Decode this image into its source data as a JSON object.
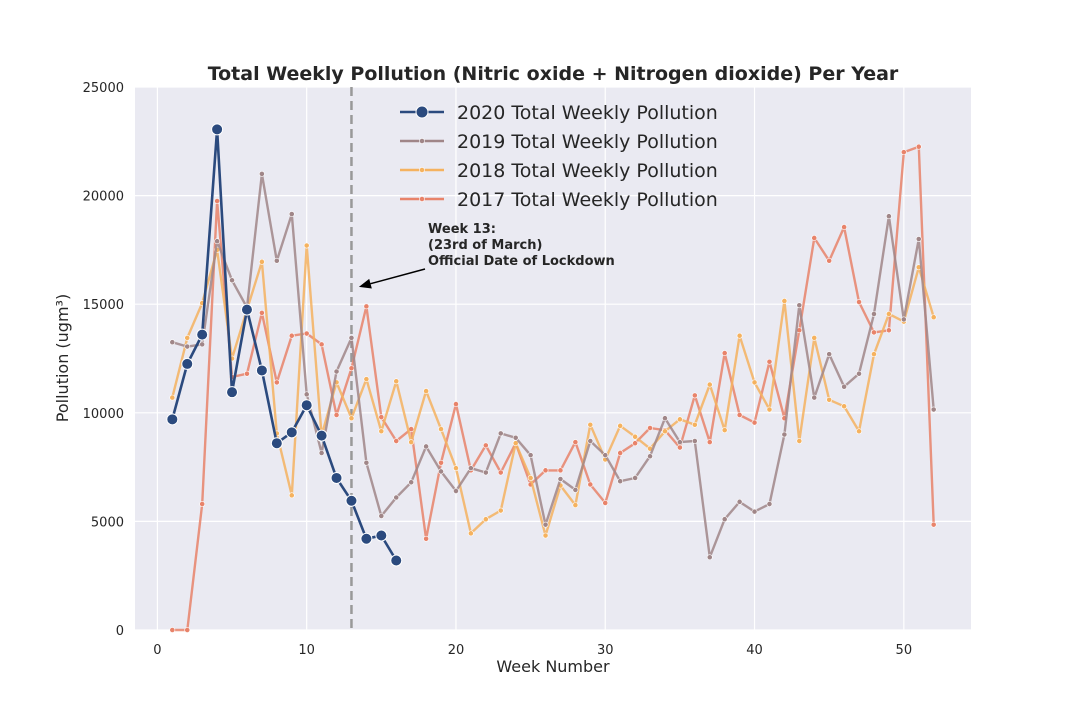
{
  "chart_data": {
    "type": "line",
    "title": "Total Weekly Pollution (Nitric oxide + Nitrogen dioxide) Per Year",
    "xlabel": "Week Number",
    "ylabel": "Pollution (ugm³)",
    "xlim": [
      -1.5,
      54.5
    ],
    "ylim": [
      0,
      25000
    ],
    "xticks": [
      0,
      10,
      20,
      30,
      40,
      50
    ],
    "yticks": [
      0,
      5000,
      10000,
      15000,
      20000,
      25000
    ],
    "grid": true,
    "legend_position": "top-center",
    "series": [
      {
        "name": "2020 Total Weekly Pollution",
        "color": "#2b4a7e",
        "marker_size": "large",
        "points": [
          [
            1,
            9700
          ],
          [
            2,
            12250
          ],
          [
            3,
            13600
          ],
          [
            4,
            23050
          ],
          [
            5,
            10950
          ],
          [
            6,
            14750
          ],
          [
            7,
            11950
          ],
          [
            8,
            8600
          ],
          [
            9,
            9100
          ],
          [
            10,
            10350
          ],
          [
            11,
            8950
          ],
          [
            12,
            7000
          ],
          [
            13,
            5950
          ],
          [
            14,
            4200
          ],
          [
            15,
            4350
          ],
          [
            16,
            3200
          ]
        ]
      },
      {
        "name": "2019 Total Weekly Pollution",
        "color": "#a08688",
        "marker_size": "small",
        "points": [
          [
            1,
            13250
          ],
          [
            2,
            13050
          ],
          [
            3,
            13150
          ],
          [
            4,
            17900
          ],
          [
            5,
            16100
          ],
          [
            6,
            14850
          ],
          [
            7,
            21000
          ],
          [
            8,
            17000
          ],
          [
            9,
            19150
          ],
          [
            10,
            10850
          ],
          [
            11,
            8150
          ],
          [
            12,
            11900
          ],
          [
            13,
            13450
          ],
          [
            14,
            7700
          ],
          [
            15,
            5250
          ],
          [
            16,
            6100
          ],
          [
            17,
            6800
          ],
          [
            18,
            8450
          ],
          [
            19,
            7300
          ],
          [
            20,
            6400
          ],
          [
            21,
            7450
          ],
          [
            22,
            7250
          ],
          [
            23,
            9050
          ],
          [
            24,
            8850
          ],
          [
            25,
            8050
          ],
          [
            26,
            4850
          ],
          [
            27,
            6950
          ],
          [
            28,
            6450
          ],
          [
            29,
            8700
          ],
          [
            30,
            8050
          ],
          [
            31,
            6850
          ],
          [
            32,
            7000
          ],
          [
            33,
            8000
          ],
          [
            34,
            9750
          ],
          [
            35,
            8650
          ],
          [
            36,
            8700
          ],
          [
            37,
            3350
          ],
          [
            38,
            5100
          ],
          [
            39,
            5900
          ],
          [
            40,
            5450
          ],
          [
            41,
            5800
          ],
          [
            42,
            9000
          ],
          [
            43,
            14950
          ],
          [
            44,
            10700
          ],
          [
            45,
            12700
          ],
          [
            46,
            11200
          ],
          [
            47,
            11800
          ],
          [
            48,
            14550
          ],
          [
            49,
            19050
          ],
          [
            50,
            14300
          ],
          [
            51,
            18000
          ],
          [
            52,
            10150
          ]
        ]
      },
      {
        "name": "2018 Total Weekly Pollution",
        "color": "#f5b25f",
        "marker_size": "small",
        "points": [
          [
            1,
            10700
          ],
          [
            2,
            13450
          ],
          [
            3,
            15050
          ],
          [
            4,
            17500
          ],
          [
            5,
            12500
          ],
          [
            6,
            14750
          ],
          [
            7,
            16950
          ],
          [
            8,
            9050
          ],
          [
            9,
            6200
          ],
          [
            10,
            17700
          ],
          [
            11,
            8950
          ],
          [
            12,
            11400
          ],
          [
            13,
            9750
          ],
          [
            14,
            11550
          ],
          [
            15,
            9150
          ],
          [
            16,
            11450
          ],
          [
            17,
            8650
          ],
          [
            18,
            11000
          ],
          [
            19,
            9250
          ],
          [
            20,
            7450
          ],
          [
            21,
            4450
          ],
          [
            22,
            5100
          ],
          [
            23,
            5500
          ],
          [
            24,
            8600
          ],
          [
            25,
            7000
          ],
          [
            26,
            4350
          ],
          [
            27,
            6650
          ],
          [
            28,
            5750
          ],
          [
            29,
            9450
          ],
          [
            30,
            7850
          ],
          [
            31,
            9400
          ],
          [
            32,
            8900
          ],
          [
            33,
            8350
          ],
          [
            34,
            9150
          ],
          [
            35,
            9700
          ],
          [
            36,
            9450
          ],
          [
            37,
            11300
          ],
          [
            38,
            9200
          ],
          [
            39,
            13550
          ],
          [
            40,
            11400
          ],
          [
            41,
            10150
          ],
          [
            42,
            15150
          ],
          [
            43,
            8700
          ],
          [
            44,
            13450
          ],
          [
            45,
            10600
          ],
          [
            46,
            10300
          ],
          [
            47,
            9150
          ],
          [
            48,
            12700
          ],
          [
            49,
            14550
          ],
          [
            50,
            14200
          ],
          [
            51,
            16700
          ],
          [
            52,
            14400
          ]
        ]
      },
      {
        "name": "2017 Total Weekly Pollution",
        "color": "#e8836a",
        "marker_size": "small",
        "points": [
          [
            1,
            0
          ],
          [
            2,
            0
          ],
          [
            3,
            5800
          ],
          [
            4,
            19750
          ],
          [
            5,
            11650
          ],
          [
            6,
            11800
          ],
          [
            7,
            14600
          ],
          [
            8,
            11400
          ],
          [
            9,
            13550
          ],
          [
            10,
            13650
          ],
          [
            11,
            13150
          ],
          [
            12,
            9900
          ],
          [
            13,
            12050
          ],
          [
            14,
            14900
          ],
          [
            15,
            9800
          ],
          [
            16,
            8700
          ],
          [
            17,
            9250
          ],
          [
            18,
            4200
          ],
          [
            19,
            7700
          ],
          [
            20,
            10400
          ],
          [
            21,
            7350
          ],
          [
            22,
            8500
          ],
          [
            23,
            7250
          ],
          [
            24,
            8600
          ],
          [
            25,
            6700
          ],
          [
            26,
            7350
          ],
          [
            27,
            7350
          ],
          [
            28,
            8650
          ],
          [
            29,
            6700
          ],
          [
            30,
            5850
          ],
          [
            31,
            8150
          ],
          [
            32,
            8600
          ],
          [
            33,
            9300
          ],
          [
            34,
            9200
          ],
          [
            35,
            8400
          ],
          [
            36,
            10800
          ],
          [
            37,
            8650
          ],
          [
            38,
            12750
          ],
          [
            39,
            9900
          ],
          [
            40,
            9550
          ],
          [
            41,
            12350
          ],
          [
            42,
            9750
          ],
          [
            43,
            13800
          ],
          [
            44,
            18050
          ],
          [
            45,
            17000
          ],
          [
            46,
            18550
          ],
          [
            47,
            15100
          ],
          [
            48,
            13700
          ],
          [
            49,
            13800
          ],
          [
            50,
            22000
          ],
          [
            51,
            22250
          ],
          [
            52,
            4850
          ]
        ]
      }
    ],
    "vline": {
      "x": 13,
      "color": "#999999"
    },
    "annotation": {
      "lines": [
        "Week 13:",
        "(23rd of March)",
        "Official Date of Lockdown"
      ],
      "arrow_to": [
        13.5,
        15800
      ]
    }
  }
}
